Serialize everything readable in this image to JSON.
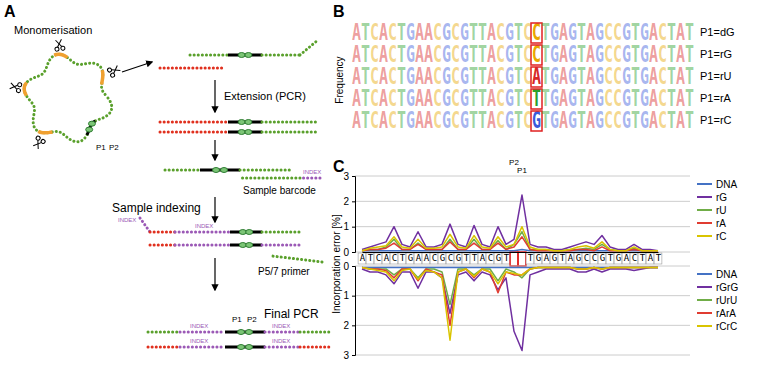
{
  "figure": {
    "panel_labels": [
      "A",
      "B",
      "C"
    ]
  },
  "diagram": {
    "monomerisation": "Monomerisation",
    "p_labels": [
      "P1",
      "P2"
    ],
    "extension": "Extension (PCR)",
    "sample_barcode": "Sample barcode",
    "sample_indexing": "Sample indexing",
    "index": "INDEX",
    "primer": "P5/7 primer",
    "final_pcr": "Final PCR"
  },
  "logo": {
    "y_label": "Frequency",
    "rows": [
      {
        "label": "P1=dG",
        "left": "ATCACTGAACGCGTTACGTC",
        "base": "C",
        "right": "TGAGTAGCCGTGACTAT"
      },
      {
        "label": "P1=rG",
        "left": "ATCACTGAACGCGTTACGTC",
        "base": "C",
        "right": "TGAGTAGCCGTGACTAT"
      },
      {
        "label": "P1=rU",
        "left": "ATCACTGAACGCGTTACGTC",
        "base": "A",
        "right": "TGAGTAGCCGTGACTAT"
      },
      {
        "label": "P1=rA",
        "left": "ATCACTGAACGCGTTACGTC",
        "base": "T",
        "right": "TGAGTAGCCGTGACTAT"
      },
      {
        "label": "P1=rC",
        "left": "ATCACTGAACGCGTTACGTC",
        "base": "G",
        "right": "TGAGTAGCCGTGACTAT"
      }
    ]
  },
  "chart_data": [
    {
      "type": "line",
      "y_label": "Incorporation error [%]",
      "categories": [
        "A",
        "T",
        "C",
        "A",
        "C",
        "T",
        "G",
        "A",
        "A",
        "C",
        "G",
        "C",
        "G",
        "T",
        "T",
        "A",
        "C",
        "G",
        "T",
        null,
        null,
        "T",
        "G",
        "A",
        "G",
        "T",
        "A",
        "G",
        "C",
        "C",
        "G",
        "T",
        "G",
        "A",
        "C",
        "T",
        "A",
        "T"
      ],
      "annotations": [
        {
          "text": "P2",
          "x": 19
        },
        {
          "text": "P1",
          "x": 20
        }
      ],
      "ylim": [
        0,
        3
      ],
      "yticks": [
        0,
        1,
        2,
        3
      ],
      "grid": true,
      "legend": "right",
      "series": [
        {
          "name": "DNA",
          "color": "#4472c4",
          "values": [
            0.05,
            0.05,
            0.05,
            0.05,
            0.05,
            0.05,
            0.05,
            0.05,
            0.05,
            0.05,
            0.05,
            0.05,
            0.05,
            0.05,
            0.05,
            0.05,
            0.05,
            0.05,
            0.05,
            0.05,
            0.1,
            0.05,
            0.05,
            0.05,
            0.05,
            0.05,
            0.05,
            0.05,
            0.05,
            0.05,
            0.05,
            0.05,
            0.05,
            0.05,
            0.05,
            0.05,
            0.05,
            0.05
          ]
        },
        {
          "name": "rG",
          "color": "#7030a0",
          "values": [
            0.1,
            0.2,
            0.3,
            0.4,
            1.0,
            0.3,
            0.2,
            0.8,
            0.2,
            0.2,
            0.3,
            1.1,
            0.3,
            0.2,
            1.05,
            0.3,
            0.2,
            1.0,
            0.3,
            0.5,
            2.25,
            0.3,
            0.2,
            0.2,
            0.1,
            0.1,
            0.2,
            0.3,
            0.4,
            0.3,
            0.65,
            0.2,
            0.1,
            0.1,
            0.3,
            0.1,
            0.1,
            0.05
          ]
        },
        {
          "name": "rU",
          "color": "#70ad47",
          "values": [
            0.05,
            0.1,
            0.1,
            0.2,
            0.5,
            0.1,
            0.1,
            0.35,
            0.1,
            0.1,
            0.1,
            0.5,
            0.1,
            0.1,
            0.5,
            0.1,
            0.1,
            0.45,
            0.1,
            0.3,
            0.8,
            0.1,
            0.1,
            0.1,
            0.05,
            0.05,
            0.1,
            0.1,
            0.15,
            0.1,
            0.3,
            0.1,
            0.05,
            0.05,
            0.15,
            0.05,
            0.05,
            0.05
          ]
        },
        {
          "name": "rA",
          "color": "#e03c31",
          "values": [
            0.05,
            0.1,
            0.1,
            0.15,
            0.35,
            0.1,
            0.1,
            0.3,
            0.1,
            0.1,
            0.1,
            0.4,
            0.1,
            0.1,
            0.35,
            0.1,
            0.1,
            0.35,
            0.1,
            0.2,
            0.6,
            0.1,
            0.05,
            0.05,
            0.05,
            0.05,
            0.05,
            0.1,
            0.1,
            0.05,
            0.2,
            0.05,
            0.05,
            0.05,
            0.1,
            0.05,
            0.05,
            0.05
          ]
        },
        {
          "name": "rC",
          "color": "#d9c400",
          "values": [
            0.05,
            0.15,
            0.2,
            0.25,
            0.6,
            0.2,
            0.15,
            0.5,
            0.15,
            0.15,
            0.2,
            0.7,
            0.2,
            0.15,
            0.65,
            0.2,
            0.15,
            0.6,
            0.2,
            0.3,
            1.0,
            0.2,
            0.1,
            0.1,
            0.05,
            0.05,
            0.1,
            0.2,
            0.25,
            0.15,
            0.4,
            0.1,
            0.05,
            0.05,
            0.2,
            0.05,
            0.05,
            0.05
          ]
        }
      ]
    },
    {
      "type": "line",
      "tick_labels": "y",
      "ylim": [
        3,
        0
      ],
      "yticks": [
        0,
        1,
        2,
        3
      ],
      "grid": true,
      "legend": "right",
      "series": [
        {
          "name": "DNA",
          "color": "#4472c4",
          "values": [
            0.05,
            0.05,
            0.05,
            0.05,
            0.05,
            0.05,
            0.05,
            0.05,
            0.05,
            0.05,
            0.05,
            0.05,
            0.05,
            0.05,
            0.05,
            0.05,
            0.05,
            0.05,
            0.05,
            0.05,
            0.05,
            0.05,
            0.05,
            0.05,
            0.05,
            0.05,
            0.05,
            0.05,
            0.05,
            0.05,
            0.05,
            0.05,
            0.05,
            0.05,
            0.05,
            0.05,
            0.05,
            0.05
          ]
        },
        {
          "name": "rGrG",
          "color": "#7030a0",
          "values": [
            0.1,
            0.2,
            0.2,
            0.3,
            0.6,
            0.2,
            0.2,
            0.75,
            0.2,
            0.2,
            0.4,
            1.6,
            0.3,
            0.2,
            0.5,
            0.2,
            0.3,
            0.8,
            0.4,
            2.2,
            2.85,
            0.3,
            0.2,
            0.1,
            0.1,
            0.1,
            0.1,
            0.2,
            0.2,
            0.1,
            0.2,
            0.1,
            0.1,
            0.1,
            0.15,
            0.1,
            0.05,
            0.05
          ]
        },
        {
          "name": "rUrU",
          "color": "#70ad47",
          "values": [
            0.05,
            0.1,
            0.1,
            0.1,
            0.3,
            0.1,
            0.1,
            0.4,
            0.1,
            0.1,
            0.2,
            1.3,
            0.1,
            0.1,
            0.3,
            0.1,
            0.1,
            0.5,
            0.1,
            0.2,
            0.4,
            0.1,
            0.05,
            0.05,
            0.05,
            0.05,
            0.05,
            0.1,
            0.1,
            0.05,
            0.1,
            0.05,
            0.05,
            0.05,
            0.05,
            0.05,
            0.05,
            0.05
          ]
        },
        {
          "name": "rArA",
          "color": "#e03c31",
          "values": [
            0.05,
            0.1,
            0.1,
            0.15,
            0.4,
            0.1,
            0.1,
            0.5,
            0.1,
            0.2,
            0.3,
            2.0,
            0.2,
            0.1,
            0.4,
            0.1,
            0.2,
            0.9,
            0.2,
            0.3,
            0.3,
            0.1,
            0.05,
            0.05,
            0.05,
            0.05,
            0.05,
            0.1,
            0.1,
            0.05,
            0.1,
            0.05,
            0.05,
            0.05,
            0.05,
            0.05,
            0.05,
            0.05
          ]
        },
        {
          "name": "rCrC",
          "color": "#d9c400",
          "values": [
            0.05,
            0.1,
            0.15,
            0.2,
            0.5,
            0.15,
            0.1,
            0.45,
            0.15,
            0.2,
            0.4,
            2.5,
            0.2,
            0.1,
            0.35,
            0.1,
            0.2,
            0.6,
            0.2,
            0.25,
            0.3,
            0.1,
            0.05,
            0.05,
            0.05,
            0.05,
            0.05,
            0.1,
            0.1,
            0.05,
            0.1,
            0.05,
            0.05,
            0.05,
            0.05,
            0.05,
            0.05,
            0.05
          ]
        }
      ]
    }
  ]
}
